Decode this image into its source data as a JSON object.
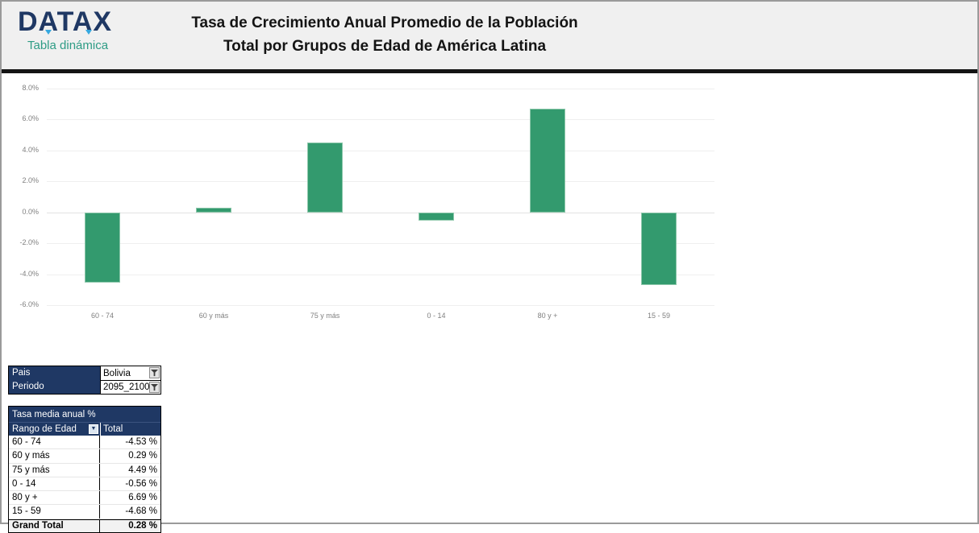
{
  "header": {
    "logo_text": "DATAX",
    "logo_subtitle": "Tabla dinámica",
    "title_line1": "Tasa de Crecimiento Anual Promedio de la Población",
    "title_line2": "Total por Grupos de Edad de América Latina"
  },
  "chart_data": {
    "type": "bar",
    "title": "Tasa de Crecimiento Anual Promedio de la Población Total por Grupos de Edad de América Latina",
    "categories": [
      "60 - 74",
      "60 y más",
      "75 y más",
      "0 - 14",
      "80 y +",
      "15 - 59"
    ],
    "values": [
      -4.53,
      0.29,
      4.49,
      -0.56,
      6.69,
      -4.68
    ],
    "unit": "%",
    "ylim": [
      -6,
      8
    ],
    "ytick_step": 2,
    "yticks": [
      "8.0%",
      "6.0%",
      "4.0%",
      "2.0%",
      "0.0%",
      "-2.0%",
      "-4.0%",
      "-6.0%"
    ],
    "grid": true,
    "legend": false,
    "bar_color": "#339a6e",
    "bar_border_color": "#8cc7aa"
  },
  "filters": {
    "rows": [
      {
        "label": "Pais",
        "value": "Bolivia"
      },
      {
        "label": "Periodo",
        "value": "2095_2100"
      }
    ]
  },
  "pivot": {
    "title": "Tasa media anual %",
    "col1_header": "Rango de Edad",
    "col2_header": "Total",
    "rows": [
      {
        "label": "60 - 74",
        "value": "-4.53 %"
      },
      {
        "label": "60 y más",
        "value": "0.29 %"
      },
      {
        "label": "75 y más",
        "value": "4.49 %"
      },
      {
        "label": "0 - 14",
        "value": "-0.56 %"
      },
      {
        "label": "80 y +",
        "value": "6.69 %"
      },
      {
        "label": "15 - 59",
        "value": "-4.68 %"
      }
    ],
    "grand_total": {
      "label": "Grand Total",
      "value": "0.28 %"
    }
  },
  "colors": {
    "brand_navy": "#1f3864",
    "brand_teal": "#2e9c85",
    "logo_accent_blue": "#35a8e0",
    "bar_green": "#339a6e",
    "header_background": "#f0f0f0",
    "axis_text": "#7f7f7f"
  }
}
